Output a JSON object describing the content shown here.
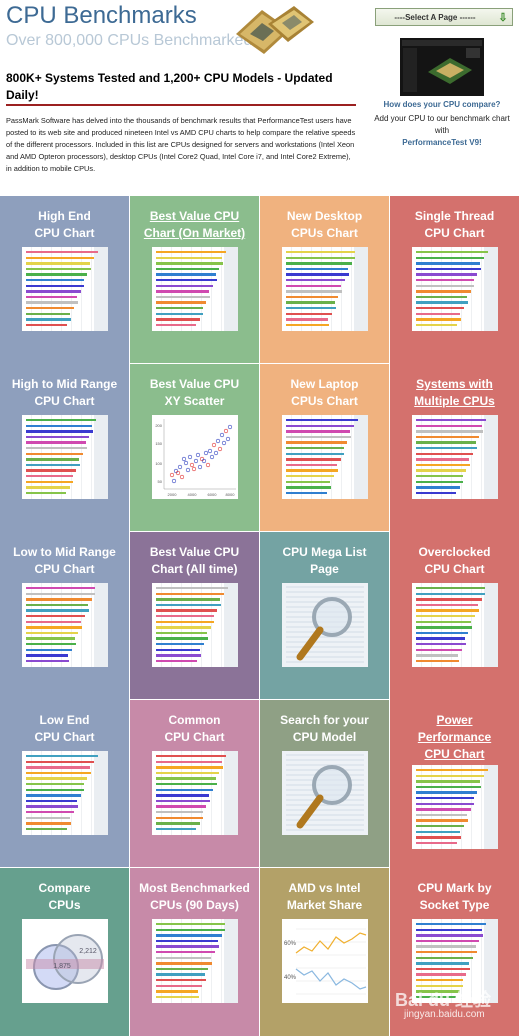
{
  "header": {
    "title": "CPU Benchmarks",
    "subtitle": "Over 800,000 CPUs Benchmarked"
  },
  "select_page": {
    "label": "----Select A Page ------"
  },
  "ad": {
    "question": "How does your CPU compare?",
    "text_before": "Add your CPU to our benchmark chart with",
    "link": "PerformanceTest V9!"
  },
  "heading": "800K+ Systems Tested and 1,200+ CPU Models - Updated Daily!",
  "intro": "PassMark Software has delved into the thousands of benchmark results that PerformanceTest users have posted to its web site and produced nineteen Intel vs AMD CPU charts to help compare the relative speeds of the different processors. Included in this list are CPUs designed for servers and workstations (Intel Xeon and AMD Opteron processors), desktop CPUs (Intel Core2 Quad, Intel Core i7, and Intel Core2 Extreme), in addition to mobile CPUs.",
  "colors": {
    "blue": "#8e9fbd",
    "green": "#8bbd8d",
    "orange": "#f0b27f",
    "red": "#d4716d",
    "purple": "#8b7398",
    "teal": "#74a3a3",
    "pink": "#c78aa8",
    "olive": "#8fa085",
    "seafoam": "#66a08e",
    "gold": "#b3a168"
  },
  "tiles": [
    {
      "label": "High End\nCPU Chart",
      "underline": false
    },
    {
      "label": "Best Value CPU\nChart (On Market)",
      "underline": true
    },
    {
      "label": "New Desktop\nCPUs Chart",
      "underline": false
    },
    {
      "label": "Single Thread\nCPU Chart",
      "underline": false
    },
    {
      "label": "High to Mid Range\nCPU Chart",
      "underline": false
    },
    {
      "label": "Best Value CPU\nXY Scatter",
      "underline": false
    },
    {
      "label": "New Laptop\nCPUs Chart",
      "underline": false
    },
    {
      "label": "Systems with\nMultiple CPUs",
      "underline": true
    },
    {
      "label": "Low to Mid Range\nCPU Chart",
      "underline": false
    },
    {
      "label": "Best Value CPU\nChart (All time)",
      "underline": false
    },
    {
      "label": "CPU Mega List\nPage",
      "underline": false
    },
    {
      "label": "Overclocked\nCPU Chart",
      "underline": false
    },
    {
      "label": "Low End\nCPU Chart",
      "underline": false
    },
    {
      "label": "Common\nCPU Chart",
      "underline": false
    },
    {
      "label": "Search for your\nCPU Model",
      "underline": false
    },
    {
      "label": "Power\nPerformance\nCPU Chart",
      "underline": true
    },
    {
      "label": "Compare\nCPUs",
      "underline": false
    },
    {
      "label": "Most Benchmarked\nCPUs (90 Days)",
      "underline": false
    },
    {
      "label": "AMD vs Intel\nMarket Share",
      "underline": false
    },
    {
      "label": "CPU Mark by\nSocket Type",
      "underline": false
    }
  ],
  "thumb_labels": {
    "compare_values": [
      "2,212",
      "1,875"
    ],
    "market_share": [
      "60%",
      "40%"
    ],
    "scatter_x": [
      "2000",
      "4000",
      "6000",
      "8000"
    ],
    "scatter_y": [
      "200",
      "150",
      "100",
      "50"
    ]
  },
  "watermark": "Bai du 经验",
  "watermark_sub": "jingyan.baidu.com"
}
